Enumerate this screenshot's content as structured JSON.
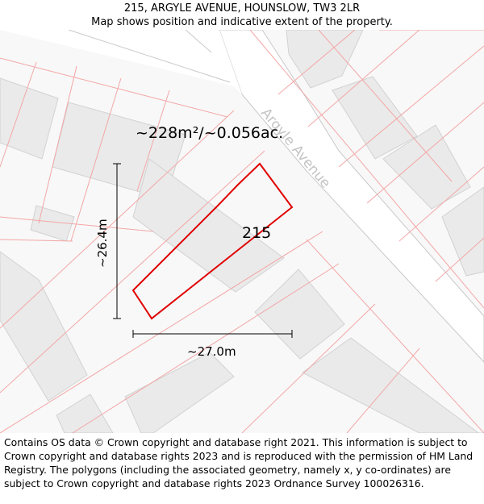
{
  "header": {
    "address": "215, ARGYLE AVENUE, HOUNSLOW, TW3 2LR",
    "subtitle": "Map shows position and indicative extent of the property."
  },
  "map": {
    "area_label": "~228m²/~0.056ac.",
    "plot_number": "215",
    "road_name": "Argyle Avenue",
    "dimension_vertical": "~26.4m",
    "dimension_horizontal": "~27.0m",
    "colors": {
      "boundary": "#e00000",
      "parcel_lines": "#f4a6a6",
      "building_fill": "#eaeaea",
      "building_stroke": "#d2d2d2",
      "road_fill": "#ffffff",
      "road_edge": "#c8c8c8"
    }
  },
  "footer": {
    "attribution": "Contains OS data © Crown copyright and database right 2021. This information is subject to Crown copyright and database rights 2023 and is reproduced with the permission of HM Land Registry. The polygons (including the associated geometry, namely x, y co-ordinates) are subject to Crown copyright and database rights 2023 Ordnance Survey 100026316."
  }
}
